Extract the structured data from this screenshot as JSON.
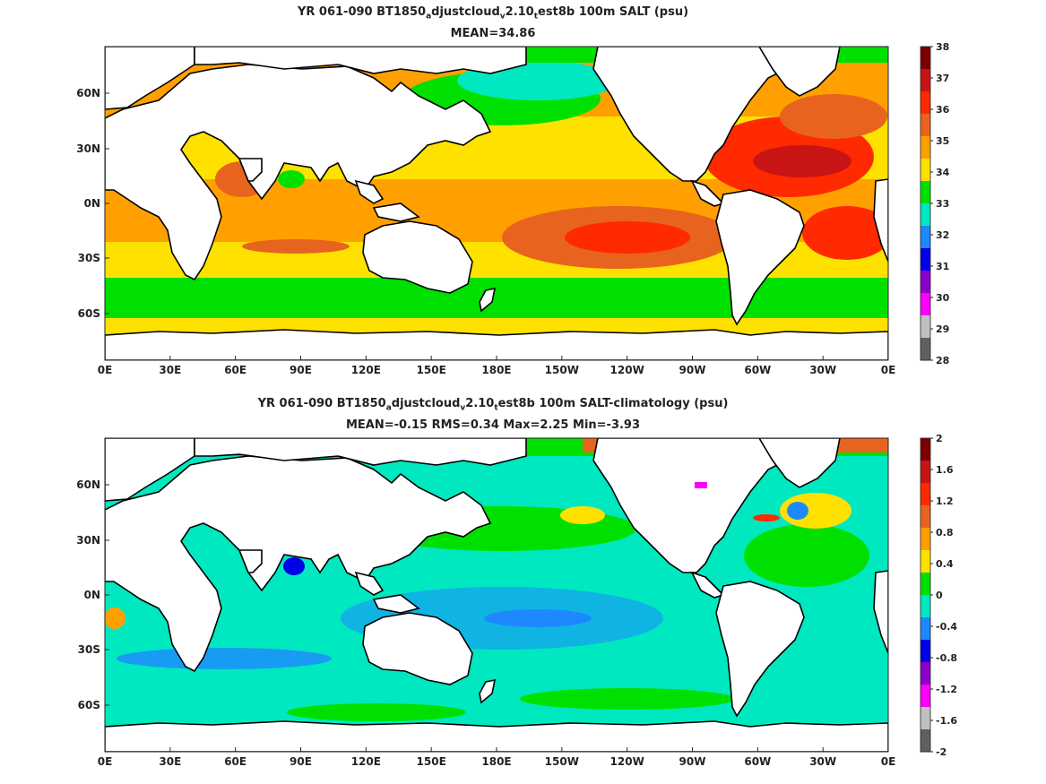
{
  "panels": [
    {
      "title_parts": {
        "a": "YR 061-090 BT1850",
        "sub1": "a",
        "b": "djustcloud",
        "sub2": "v",
        "c": "2.10",
        "sub3": "t",
        "d": "est8b 100m SALT (psu)"
      },
      "subtitle": "MEAN=34.86",
      "lon_ticks": [
        "0E",
        "30E",
        "60E",
        "90E",
        "120E",
        "150E",
        "180E",
        "150W",
        "120W",
        "90W",
        "60W",
        "30W",
        "0E"
      ],
      "lat_ticks": [
        "60N",
        "30N",
        "0N",
        "30S",
        "60S"
      ],
      "colorbar": {
        "labels": [
          "38",
          "37",
          "36",
          "35",
          "34",
          "33",
          "32",
          "31",
          "30",
          "29",
          "28"
        ],
        "colors": [
          "#7a0000",
          "#c81414",
          "#ff2a00",
          "#e8641e",
          "#ffa000",
          "#ffe100",
          "#00e000",
          "#00e8c0",
          "#1e88ff",
          "#0000e6",
          "#8c00c8",
          "#ff00ff",
          "#c0c0c0",
          "#606060"
        ]
      }
    },
    {
      "title_parts": {
        "a": "YR 061-090 BT1850",
        "sub1": "a",
        "b": "djustcloud",
        "sub2": "v",
        "c": "2.10",
        "sub3": "t",
        "d": "est8b 100m SALT-climatology (psu)"
      },
      "subtitle": "MEAN=-0.15   RMS=0.34   Max=2.25   Min=-3.93",
      "lon_ticks": [
        "0E",
        "30E",
        "60E",
        "90E",
        "120E",
        "150E",
        "180E",
        "150W",
        "120W",
        "90W",
        "60W",
        "30W",
        "0E"
      ],
      "lat_ticks": [
        "60N",
        "30N",
        "0N",
        "30S",
        "60S"
      ],
      "colorbar": {
        "labels": [
          "2",
          "1.6",
          "1.2",
          "0.8",
          "0.4",
          "0",
          "-0.4",
          "-0.8",
          "-1.2",
          "-1.6",
          "-2"
        ],
        "colors": [
          "#7a0000",
          "#c81414",
          "#ff2a00",
          "#e8641e",
          "#ffa000",
          "#ffe100",
          "#00e000",
          "#00e8c0",
          "#1e88ff",
          "#0000e6",
          "#8c00c8",
          "#ff00ff",
          "#c0c0c0",
          "#606060"
        ]
      }
    }
  ],
  "colors": {
    "land": "#ffffff",
    "coast": "#000000",
    "frame": "#222222"
  }
}
